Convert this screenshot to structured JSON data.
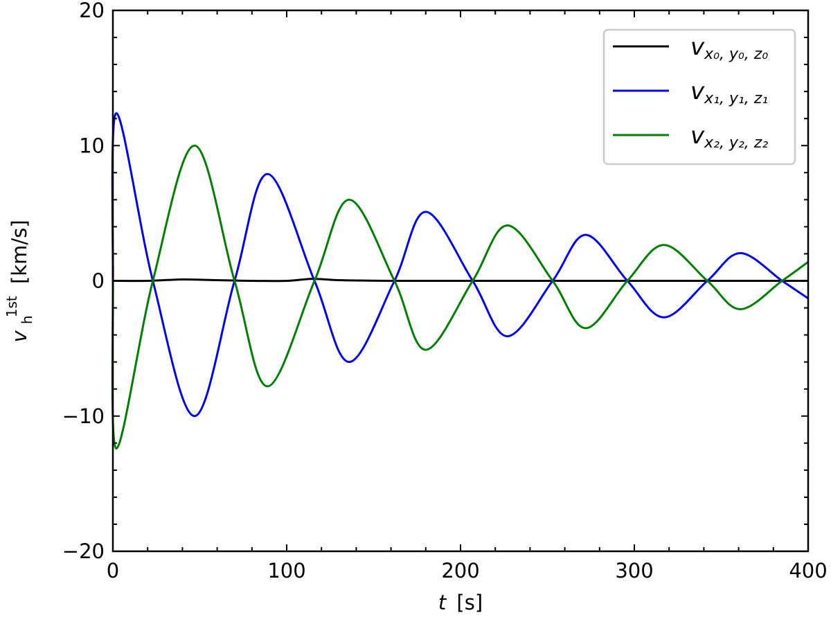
{
  "chart_data": {
    "type": "line",
    "title": "",
    "xlabel": "t [s]",
    "xlabel_italic_part": "t",
    "xlabel_unit": "[s]",
    "ylabel": "v_h^1st [km/s]",
    "ylabel_main": "v",
    "ylabel_sub": "h",
    "ylabel_sup": "1st",
    "ylabel_unit": "[km/s]",
    "xlim": [
      0,
      400
    ],
    "ylim": [
      -20,
      20
    ],
    "xticks": [
      0,
      100,
      200,
      300,
      400
    ],
    "xtick_labels": [
      "0",
      "100",
      "200",
      "300",
      "400"
    ],
    "yticks": [
      -20,
      -10,
      0,
      10,
      20
    ],
    "ytick_labels": [
      "−20",
      "−10",
      "0",
      "10",
      "20"
    ],
    "x_minor_step": 20,
    "y_minor_step": 2,
    "grid": false,
    "ticks_direction": "in",
    "ticks_all_sides": true,
    "legend_position": "upper right",
    "series": [
      {
        "name": "v_{x0,y0,z0}",
        "label_main": "v",
        "label_sub": "x₀, y₀, z₀",
        "color": "#000000",
        "x": [
          0,
          20,
          40,
          60,
          80,
          100,
          115,
          130,
          160,
          200,
          250,
          300,
          350,
          400
        ],
        "values": [
          0,
          0,
          0.1,
          0.05,
          0,
          0,
          0.15,
          0.05,
          0,
          0,
          0,
          0,
          0,
          0
        ]
      },
      {
        "name": "v_{x1,y1,z1}",
        "label_main": "v",
        "label_sub": "x₁, y₁, z₁",
        "color": "#0000ff",
        "x": [
          0,
          2,
          23,
          47,
          70,
          89,
          116,
          136,
          162,
          180,
          207,
          227,
          253,
          272,
          296,
          317,
          342,
          361,
          385,
          400
        ],
        "values": [
          0,
          12.4,
          0,
          -10.0,
          0,
          7.9,
          0,
          -6.0,
          0,
          5.1,
          0,
          -4.1,
          0,
          3.4,
          0,
          -2.7,
          0,
          2.05,
          0,
          -1.3
        ]
      },
      {
        "name": "v_{x2,y2,z2}",
        "label_main": "v",
        "label_sub": "x₂, y₂, z₂",
        "color": "#008000",
        "x": [
          0,
          2,
          23,
          47,
          70,
          89,
          116,
          136,
          162,
          180,
          207,
          227,
          253,
          272,
          296,
          317,
          342,
          361,
          385,
          400
        ],
        "values": [
          0,
          -12.4,
          0,
          10.0,
          0,
          -7.8,
          0,
          6.0,
          0,
          -5.1,
          0,
          4.1,
          0,
          -3.5,
          0,
          2.65,
          0,
          -2.1,
          0,
          1.4
        ]
      }
    ]
  }
}
